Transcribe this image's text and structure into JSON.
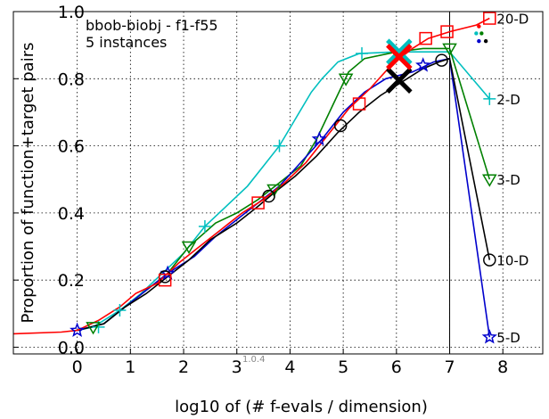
{
  "chart_data": {
    "type": "line",
    "title_lines": [
      "bbob-biobj - f1-f55",
      "5 instances"
    ],
    "xlabel": "log10 of (# f-evals / dimension)",
    "ylabel": "Proportion of function+target pairs",
    "xlim": [
      -1.2,
      8.75
    ],
    "ylim": [
      -0.02,
      1.0
    ],
    "x_ticks": [
      0,
      1,
      2,
      3,
      4,
      5,
      6,
      7,
      8
    ],
    "x_tick_labels": [
      "0",
      "1",
      "2",
      "3",
      "4",
      "5",
      "6",
      "7",
      "8"
    ],
    "y_ticks": [
      0.0,
      0.2,
      0.4,
      0.6,
      0.8,
      1.0
    ],
    "y_tick_labels": [
      "0.0",
      "0.2",
      "0.4",
      "0.6",
      "0.8",
      "1.0"
    ],
    "grid": true,
    "budget_line_x": 7.0,
    "version_label": "1.0.4",
    "series": [
      {
        "name": "2-D",
        "color": "#00bfbf",
        "marker": "plus",
        "points": [
          [
            0.0,
            0.05
          ],
          [
            0.3,
            0.06
          ],
          [
            0.8,
            0.11
          ],
          [
            1.2,
            0.16
          ],
          [
            1.6,
            0.22
          ],
          [
            2.0,
            0.28
          ],
          [
            2.4,
            0.36
          ],
          [
            2.8,
            0.42
          ],
          [
            3.2,
            0.48
          ],
          [
            3.5,
            0.54
          ],
          [
            3.8,
            0.6
          ],
          [
            4.1,
            0.68
          ],
          [
            4.4,
            0.76
          ],
          [
            4.6,
            0.8
          ],
          [
            4.9,
            0.85
          ],
          [
            5.3,
            0.875
          ],
          [
            6.0,
            0.88
          ],
          [
            6.7,
            0.88
          ],
          [
            7.0,
            0.88
          ],
          [
            7.75,
            0.74
          ]
        ],
        "marker_points": [
          [
            0.4,
            0.06
          ],
          [
            0.8,
            0.11
          ],
          [
            2.4,
            0.36
          ],
          [
            3.8,
            0.6
          ],
          [
            5.35,
            0.875
          ],
          [
            7.75,
            0.74
          ]
        ],
        "big_x": [
          6.05,
          0.88
        ]
      },
      {
        "name": "3-D",
        "color": "#008000",
        "marker": "tri_down",
        "points": [
          [
            0.0,
            0.05
          ],
          [
            0.5,
            0.07
          ],
          [
            0.9,
            0.12
          ],
          [
            1.3,
            0.17
          ],
          [
            1.7,
            0.22
          ],
          [
            2.1,
            0.3
          ],
          [
            2.6,
            0.37
          ],
          [
            3.0,
            0.4
          ],
          [
            3.4,
            0.44
          ],
          [
            3.8,
            0.49
          ],
          [
            4.2,
            0.54
          ],
          [
            4.5,
            0.62
          ],
          [
            4.8,
            0.72
          ],
          [
            5.1,
            0.82
          ],
          [
            5.4,
            0.86
          ],
          [
            6.0,
            0.88
          ],
          [
            6.5,
            0.89
          ],
          [
            7.0,
            0.89
          ],
          [
            7.75,
            0.5
          ]
        ],
        "marker_points": [
          [
            0.3,
            0.06
          ],
          [
            2.1,
            0.3
          ],
          [
            3.7,
            0.47
          ],
          [
            5.05,
            0.8
          ],
          [
            7.0,
            0.89
          ],
          [
            7.75,
            0.5
          ]
        ],
        "big_x": null
      },
      {
        "name": "5-D",
        "color": "#0000cc",
        "marker": "star",
        "points": [
          [
            0.0,
            0.05
          ],
          [
            0.5,
            0.07
          ],
          [
            0.9,
            0.12
          ],
          [
            1.3,
            0.17
          ],
          [
            1.7,
            0.22
          ],
          [
            2.2,
            0.27
          ],
          [
            2.6,
            0.33
          ],
          [
            3.0,
            0.38
          ],
          [
            3.4,
            0.43
          ],
          [
            3.8,
            0.48
          ],
          [
            4.2,
            0.55
          ],
          [
            4.6,
            0.62
          ],
          [
            5.0,
            0.7
          ],
          [
            5.4,
            0.76
          ],
          [
            5.8,
            0.8
          ],
          [
            6.3,
            0.82
          ],
          [
            6.7,
            0.85
          ],
          [
            7.0,
            0.86
          ],
          [
            7.75,
            0.03
          ]
        ],
        "marker_points": [
          [
            0.0,
            0.05
          ],
          [
            1.7,
            0.22
          ],
          [
            4.55,
            0.62
          ],
          [
            6.5,
            0.84
          ],
          [
            7.75,
            0.03
          ]
        ],
        "big_x": null
      },
      {
        "name": "10-D",
        "color": "#000000",
        "marker": "circle",
        "points": [
          [
            0.0,
            0.05
          ],
          [
            0.5,
            0.07
          ],
          [
            0.9,
            0.12
          ],
          [
            1.3,
            0.16
          ],
          [
            1.7,
            0.21
          ],
          [
            2.1,
            0.26
          ],
          [
            2.5,
            0.32
          ],
          [
            3.0,
            0.37
          ],
          [
            3.4,
            0.42
          ],
          [
            3.7,
            0.46
          ],
          [
            4.1,
            0.51
          ],
          [
            4.5,
            0.57
          ],
          [
            4.9,
            0.64
          ],
          [
            5.3,
            0.7
          ],
          [
            5.7,
            0.75
          ],
          [
            6.1,
            0.79
          ],
          [
            6.5,
            0.83
          ],
          [
            6.8,
            0.85
          ],
          [
            7.0,
            0.86
          ],
          [
            7.75,
            0.26
          ]
        ],
        "marker_points": [
          [
            1.65,
            0.21
          ],
          [
            3.6,
            0.45
          ],
          [
            4.95,
            0.66
          ],
          [
            6.85,
            0.855
          ],
          [
            7.75,
            0.26
          ]
        ],
        "big_x": [
          6.05,
          0.795
        ]
      },
      {
        "name": "20-D",
        "color": "#ff0000",
        "marker": "square",
        "points": [
          [
            -1.2,
            0.04
          ],
          [
            -0.3,
            0.045
          ],
          [
            0.0,
            0.05
          ],
          [
            0.4,
            0.08
          ],
          [
            0.8,
            0.12
          ],
          [
            1.1,
            0.16
          ],
          [
            1.5,
            0.19
          ],
          [
            1.9,
            0.25
          ],
          [
            2.3,
            0.3
          ],
          [
            2.7,
            0.35
          ],
          [
            3.1,
            0.4
          ],
          [
            3.5,
            0.44
          ],
          [
            3.9,
            0.49
          ],
          [
            4.3,
            0.55
          ],
          [
            4.7,
            0.63
          ],
          [
            5.1,
            0.71
          ],
          [
            5.5,
            0.77
          ],
          [
            5.9,
            0.84
          ],
          [
            6.3,
            0.89
          ],
          [
            6.6,
            0.92
          ],
          [
            7.0,
            0.94
          ],
          [
            7.5,
            0.96
          ],
          [
            7.75,
            0.98
          ]
        ],
        "marker_points": [
          [
            1.65,
            0.2
          ],
          [
            3.4,
            0.43
          ],
          [
            5.3,
            0.725
          ],
          [
            6.55,
            0.92
          ],
          [
            6.95,
            0.94
          ],
          [
            7.75,
            0.98
          ]
        ],
        "big_x": [
          6.05,
          0.865
        ]
      }
    ],
    "dots": [
      {
        "x": 7.55,
        "y": 0.956,
        "color": "#ff0000"
      },
      {
        "x": 7.5,
        "y": 0.935,
        "color": "#00bfbf"
      },
      {
        "x": 7.6,
        "y": 0.935,
        "color": "#008000"
      },
      {
        "x": 7.55,
        "y": 0.912,
        "color": "#0000cc"
      },
      {
        "x": 7.68,
        "y": 0.912,
        "color": "#000000"
      }
    ]
  }
}
